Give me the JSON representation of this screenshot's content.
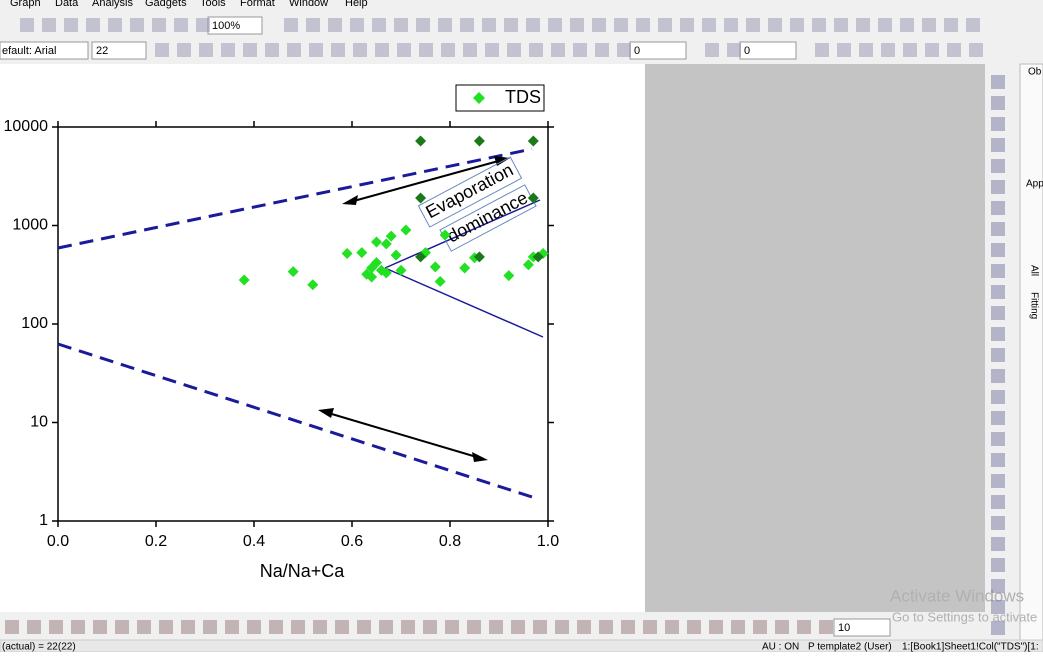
{
  "menu": [
    "Graph",
    "Data",
    "Analysis",
    "Gadgets",
    "Tools",
    "Format",
    "Window",
    "Help"
  ],
  "toolbar": {
    "zoom": "100%",
    "font": "efault: Arial",
    "size": "22",
    "line_width": "0",
    "pattern": "0",
    "bottom_size": "10"
  },
  "chart_data": {
    "type": "scatter",
    "xlabel": "Na/Na+Ca",
    "xlim": [
      0,
      1
    ],
    "xticks": [
      {
        "value": 0,
        "label": "0.0"
      },
      0.2,
      0.4,
      0.6,
      0.8,
      {
        "value": 1,
        "label": "1.0"
      }
    ],
    "ylim": [
      1,
      10000
    ],
    "yticks": [
      1,
      10,
      100,
      1000,
      10000
    ],
    "log_y": true,
    "annotations": [
      "Evaporation",
      "dominance"
    ],
    "series": [
      {
        "name": "TDS",
        "color": "#22e022",
        "x": [
          0.38,
          0.48,
          0.52,
          0.59,
          0.62,
          0.63,
          0.64,
          0.64,
          0.65,
          0.65,
          0.66,
          0.67,
          0.67,
          0.68,
          0.69,
          0.7,
          0.71,
          0.75,
          0.77,
          0.78,
          0.79,
          0.83,
          0.85,
          0.92,
          0.96,
          0.97,
          0.99
        ],
        "values": [
          280,
          340,
          250,
          520,
          530,
          320,
          370,
          300,
          420,
          680,
          350,
          330,
          650,
          780,
          500,
          350,
          900,
          530,
          380,
          270,
          800,
          370,
          470,
          310,
          400,
          480,
          520
        ]
      },
      {
        "color": "#1a7a1a",
        "x": [
          0.74,
          0.86,
          0.97,
          0.74,
          0.74,
          0.86,
          0.97,
          0.98
        ],
        "values": [
          7200,
          7200,
          7200,
          1900,
          480,
          480,
          1900,
          480
        ]
      }
    ],
    "legend": "top-right"
  },
  "status": [
    "(actual) = 22(22)",
    "AU : ON",
    "P template2 (User)",
    "1:[Book1]Sheet1!Col(\"TDS\")[1:"
  ],
  "watermark": [
    "Activate Windows",
    "Go to Settings to activate"
  ],
  "side_panel": [
    "Ob",
    "App",
    "All",
    "Fitting"
  ]
}
